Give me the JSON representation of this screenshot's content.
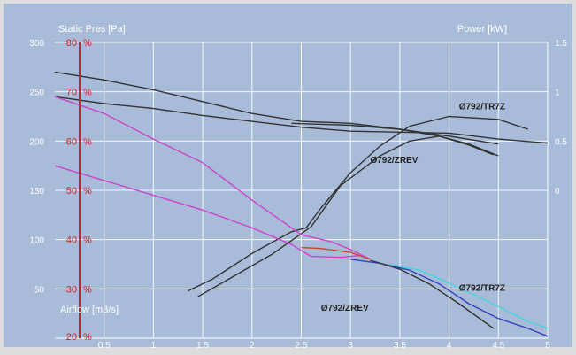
{
  "chart_data": {
    "type": "line",
    "left_axis_title": "Static Pres [Pa]",
    "right_axis_title": "Power [kW]",
    "airflow_label": "Airflow [m3/s]",
    "x_axis": {
      "range": [
        0,
        5
      ],
      "ticks": [
        {
          "value": 0.5,
          "label": "0.5"
        },
        {
          "value": 1,
          "label": "1"
        },
        {
          "value": 1.5,
          "label": "1.5"
        },
        {
          "value": 2,
          "label": "2"
        },
        {
          "value": 2.5,
          "label": "2.5"
        },
        {
          "value": 3,
          "label": "3"
        },
        {
          "value": 3.5,
          "label": "3.5"
        },
        {
          "value": 4,
          "label": "4"
        },
        {
          "value": 4.5,
          "label": "4.5"
        },
        {
          "value": 5,
          "label": "5"
        }
      ]
    },
    "pressure_axis": {
      "range": [
        0,
        300
      ],
      "ticks": [
        {
          "value": 50,
          "label": "50"
        },
        {
          "value": 100,
          "label": "100"
        },
        {
          "value": 150,
          "label": "150"
        },
        {
          "value": 200,
          "label": "200"
        },
        {
          "value": 250,
          "label": "250"
        },
        {
          "value": 300,
          "label": "300"
        }
      ]
    },
    "efficiency_axis": {
      "color": "#cc2222",
      "ticks": [
        {
          "pressure_equiv": 300,
          "label": "80"
        },
        {
          "pressure_equiv": 250,
          "label": "70"
        },
        {
          "pressure_equiv": 200,
          "label": "60"
        },
        {
          "pressure_equiv": 150,
          "label": "50"
        },
        {
          "pressure_equiv": 100,
          "label": "40"
        },
        {
          "pressure_equiv": 50,
          "label": "30"
        },
        {
          "pressure_equiv": 0,
          "label": "20"
        }
      ],
      "unit": "%"
    },
    "power_axis": {
      "ticks": [
        {
          "pressure_equiv": 300,
          "label": "1.5"
        },
        {
          "pressure_equiv": 250,
          "label": "1"
        },
        {
          "pressure_equiv": 200,
          "label": "0.5"
        },
        {
          "pressure_equiv": 150,
          "label": "0"
        }
      ]
    },
    "series": [
      {
        "color": "#333333",
        "points": [
          [
            0,
            270
          ],
          [
            0.5,
            262
          ],
          [
            1,
            252
          ],
          [
            1.5,
            240
          ],
          [
            2,
            228
          ],
          [
            2.5,
            220
          ],
          [
            3,
            218
          ],
          [
            3.5,
            212
          ],
          [
            4,
            205
          ],
          [
            4.5,
            197
          ]
        ]
      },
      {
        "color": "#333333",
        "points": [
          [
            0,
            245
          ],
          [
            0.5,
            238
          ],
          [
            1,
            233
          ],
          [
            1.5,
            226
          ],
          [
            2,
            220
          ],
          [
            2.5,
            214
          ],
          [
            3,
            210
          ],
          [
            3.5,
            209
          ],
          [
            4,
            208
          ],
          [
            4.5,
            202
          ],
          [
            5,
            198
          ]
        ]
      },
      {
        "color": "#333333",
        "points": [
          [
            1.35,
            48
          ],
          [
            1.6,
            60
          ],
          [
            2,
            86
          ],
          [
            2.4,
            108
          ],
          [
            2.55,
            112
          ],
          [
            2.7,
            132
          ],
          [
            3,
            168
          ],
          [
            3.3,
            195
          ],
          [
            3.6,
            215
          ],
          [
            4,
            225
          ],
          [
            4.5,
            222
          ],
          [
            4.8,
            212
          ]
        ]
      },
      {
        "color": "#333333",
        "points": [
          [
            1.45,
            42
          ],
          [
            1.8,
            62
          ],
          [
            2.2,
            85
          ],
          [
            2.6,
            113
          ],
          [
            2.9,
            155
          ],
          [
            3.3,
            185
          ],
          [
            3.6,
            200
          ],
          [
            3.9,
            205
          ],
          [
            4.2,
            196
          ],
          [
            4.45,
            186
          ]
        ]
      },
      {
        "color": "#333333",
        "points": [
          [
            2.4,
            218
          ],
          [
            3,
            216
          ],
          [
            3.5,
            212
          ],
          [
            3.9,
            205
          ],
          [
            4.2,
            197
          ],
          [
            4.5,
            185
          ]
        ]
      },
      {
        "color": "#cc44cc",
        "points": [
          [
            0,
            245
          ],
          [
            0.5,
            228
          ],
          [
            1,
            202
          ],
          [
            1.5,
            178
          ],
          [
            2,
            140
          ],
          [
            2.5,
            105
          ],
          [
            2.8,
            98
          ],
          [
            3,
            90
          ],
          [
            3.2,
            80
          ]
        ]
      },
      {
        "color": "#cc44cc",
        "points": [
          [
            0,
            175
          ],
          [
            0.5,
            160
          ],
          [
            1,
            145
          ],
          [
            1.5,
            130
          ],
          [
            2,
            112
          ],
          [
            2.4,
            95
          ],
          [
            2.6,
            83
          ],
          [
            2.9,
            82
          ],
          [
            3.1,
            84
          ]
        ]
      },
      {
        "color": "#cc4422",
        "points": [
          [
            2.5,
            92
          ],
          [
            2.7,
            91
          ],
          [
            3,
            87
          ],
          [
            3.2,
            80
          ]
        ]
      },
      {
        "color": "#44d4e4",
        "points": [
          [
            3.4,
            75
          ],
          [
            3.7,
            69
          ],
          [
            4,
            56
          ],
          [
            4.4,
            37
          ],
          [
            4.8,
            17
          ],
          [
            5,
            10
          ]
        ]
      },
      {
        "color": "#3344bb",
        "points": [
          [
            3,
            80
          ],
          [
            3.3,
            76
          ],
          [
            3.6,
            69
          ],
          [
            3.9,
            55
          ],
          [
            4.2,
            35
          ],
          [
            4.5,
            20
          ],
          [
            4.8,
            10
          ],
          [
            5,
            2
          ]
        ]
      },
      {
        "color": "#333333",
        "points": [
          [
            3.2,
            79
          ],
          [
            3.5,
            70
          ],
          [
            3.8,
            55
          ],
          [
            4.1,
            35
          ],
          [
            4.45,
            10
          ]
        ]
      }
    ],
    "annotations": [
      {
        "label": "Ø792/TR7Z",
        "x": 4.1,
        "y": 232
      },
      {
        "label": "Ø792/ZREV",
        "x": 3.2,
        "y": 178
      },
      {
        "label": "Ø792/TR7Z",
        "x": 4.1,
        "y": 48
      },
      {
        "label": "Ø792/ZREV",
        "x": 2.7,
        "y": 28
      }
    ],
    "grid": true
  }
}
